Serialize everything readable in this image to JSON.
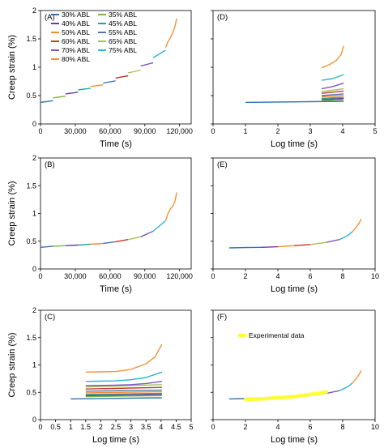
{
  "colors": {
    "s30": "#2e75b6",
    "s35": "#7cb342",
    "s40": "#6a3d9a",
    "s45": "#26a69a",
    "s50": "#f28e2b",
    "s55": "#4e79a7",
    "s60": "#c0392b",
    "s65": "#a5c04f",
    "s70": "#7e57c2",
    "s75": "#2bb3d6",
    "s80": "#f39237",
    "exp": "#ffff33",
    "axis": "#000000",
    "frame": "#000000"
  },
  "legend": {
    "series": [
      "30% ABL",
      "35% ABL",
      "40% ABL",
      "45% ABL",
      "50% ABL",
      "55% ABL",
      "60% ABL",
      "65% ABL",
      "70% ABL",
      "75% ABL",
      "80% ABL"
    ],
    "experimental": "Experimental data"
  },
  "chart_data": [
    {
      "panel": "(A)",
      "type": "line",
      "xlabel": "Time (s)",
      "ylabel": "Creep strain (%)",
      "xlim": [
        0,
        130000
      ],
      "ylim": [
        0,
        2.0
      ],
      "xticks": [
        0,
        30000,
        60000,
        90000,
        120000
      ],
      "xticklabels": [
        "0",
        "30,000",
        "60,000",
        "90,000",
        "120,000"
      ],
      "yticks": [
        0,
        0.5,
        1.0,
        1.5,
        2.0
      ],
      "yticklabels": [
        "0",
        "0.5",
        "1",
        "1.5",
        "2"
      ],
      "legend_position": "top-left",
      "series": [
        {
          "name": "30% ABL",
          "color_key": "s30",
          "x": [
            0,
            10800
          ],
          "y": [
            0.38,
            0.41
          ]
        },
        {
          "name": "35% ABL",
          "color_key": "s35",
          "x": [
            10800,
            21600
          ],
          "y": [
            0.46,
            0.49
          ]
        },
        {
          "name": "40% ABL",
          "color_key": "s40",
          "x": [
            21600,
            32400
          ],
          "y": [
            0.53,
            0.56
          ]
        },
        {
          "name": "45% ABL",
          "color_key": "s45",
          "x": [
            32400,
            43200
          ],
          "y": [
            0.6,
            0.63
          ]
        },
        {
          "name": "50% ABL",
          "color_key": "s50",
          "x": [
            43200,
            54000
          ],
          "y": [
            0.66,
            0.69
          ]
        },
        {
          "name": "55% ABL",
          "color_key": "s55",
          "x": [
            54000,
            64800
          ],
          "y": [
            0.72,
            0.76
          ]
        },
        {
          "name": "60% ABL",
          "color_key": "s60",
          "x": [
            64800,
            75600
          ],
          "y": [
            0.81,
            0.85
          ]
        },
        {
          "name": "65% ABL",
          "color_key": "s65",
          "x": [
            75600,
            86400
          ],
          "y": [
            0.9,
            0.95
          ]
        },
        {
          "name": "70% ABL",
          "color_key": "s70",
          "x": [
            86400,
            97200
          ],
          "y": [
            1.02,
            1.08
          ]
        },
        {
          "name": "75% ABL",
          "color_key": "s75",
          "x": [
            97200,
            108000
          ],
          "y": [
            1.17,
            1.3
          ]
        },
        {
          "name": "80% ABL",
          "color_key": "s80",
          "x": [
            108000,
            110000,
            112000,
            114000,
            116000,
            117500
          ],
          "y": [
            1.35,
            1.45,
            1.52,
            1.6,
            1.72,
            1.86
          ]
        }
      ]
    },
    {
      "panel": "(B)",
      "type": "line",
      "xlabel": "Time (s)",
      "ylabel": "Creep strain (%)",
      "xlim": [
        0,
        130000
      ],
      "ylim": [
        0,
        2.0
      ],
      "xticks": [
        0,
        30000,
        60000,
        90000,
        120000
      ],
      "xticklabels": [
        "0",
        "30,000",
        "60,000",
        "90,000",
        "120,000"
      ],
      "yticks": [
        0,
        0.5,
        1.0,
        1.5,
        2.0
      ],
      "yticklabels": [
        "0",
        "0.5",
        "1",
        "1.5",
        "2"
      ],
      "series": [
        {
          "name": "30% ABL",
          "color_key": "s30",
          "x": [
            0,
            10800
          ],
          "y": [
            0.39,
            0.41
          ]
        },
        {
          "name": "35% ABL",
          "color_key": "s35",
          "x": [
            10800,
            21600
          ],
          "y": [
            0.41,
            0.42
          ]
        },
        {
          "name": "40% ABL",
          "color_key": "s40",
          "x": [
            21600,
            32400
          ],
          "y": [
            0.42,
            0.43
          ]
        },
        {
          "name": "45% ABL",
          "color_key": "s45",
          "x": [
            32400,
            43200
          ],
          "y": [
            0.43,
            0.445
          ]
        },
        {
          "name": "50% ABL",
          "color_key": "s50",
          "x": [
            43200,
            54000
          ],
          "y": [
            0.445,
            0.46
          ]
        },
        {
          "name": "55% ABL",
          "color_key": "s55",
          "x": [
            54000,
            64800
          ],
          "y": [
            0.46,
            0.49
          ]
        },
        {
          "name": "60% ABL",
          "color_key": "s60",
          "x": [
            64800,
            75600
          ],
          "y": [
            0.49,
            0.53
          ]
        },
        {
          "name": "65% ABL",
          "color_key": "s65",
          "x": [
            75600,
            86400
          ],
          "y": [
            0.53,
            0.58
          ]
        },
        {
          "name": "70% ABL",
          "color_key": "s70",
          "x": [
            86400,
            97200
          ],
          "y": [
            0.58,
            0.68
          ]
        },
        {
          "name": "75% ABL",
          "color_key": "s75",
          "x": [
            97200,
            108000
          ],
          "y": [
            0.68,
            0.87
          ]
        },
        {
          "name": "80% ABL",
          "color_key": "s80",
          "x": [
            108000,
            110000,
            112000,
            114000,
            116000,
            117500
          ],
          "y": [
            0.87,
            1.0,
            1.08,
            1.13,
            1.22,
            1.38
          ]
        }
      ]
    },
    {
      "panel": "(C)",
      "type": "line",
      "xlabel": "Log time (s)",
      "ylabel": "Creep strain (%)",
      "xlim": [
        0,
        5
      ],
      "ylim": [
        0,
        2.0
      ],
      "xticks": [
        0,
        0.5,
        1,
        1.5,
        2,
        2.5,
        3,
        3.5,
        4,
        4.5,
        5
      ],
      "xticklabels": [
        "0",
        "0.5",
        "1",
        "1.5",
        "2",
        "2.5",
        "3",
        "3.5",
        "4",
        "4.5",
        "5"
      ],
      "yticks": [
        0,
        0.5,
        1.0,
        1.5,
        2.0
      ],
      "yticklabels": [
        "0",
        "0.5",
        "1",
        "1.5",
        "2"
      ],
      "series": [
        {
          "name": "30% ABL",
          "color_key": "s30",
          "x": [
            1.0,
            4.03
          ],
          "y": [
            0.38,
            0.4
          ]
        },
        {
          "name": "35% ABL",
          "color_key": "s35",
          "x": [
            1.5,
            4.03
          ],
          "y": [
            0.42,
            0.44
          ]
        },
        {
          "name": "40% ABL",
          "color_key": "s40",
          "x": [
            1.5,
            4.03
          ],
          "y": [
            0.44,
            0.46
          ]
        },
        {
          "name": "45% ABL",
          "color_key": "s45",
          "x": [
            1.5,
            4.03
          ],
          "y": [
            0.46,
            0.48
          ]
        },
        {
          "name": "50% ABL",
          "color_key": "s50",
          "x": [
            1.5,
            4.03
          ],
          "y": [
            0.49,
            0.51
          ]
        },
        {
          "name": "55% ABL",
          "color_key": "s55",
          "x": [
            1.5,
            4.03
          ],
          "y": [
            0.52,
            0.54
          ]
        },
        {
          "name": "60% ABL",
          "color_key": "s60",
          "x": [
            1.5,
            4.03
          ],
          "y": [
            0.56,
            0.59
          ]
        },
        {
          "name": "65% ABL",
          "color_key": "s65",
          "x": [
            1.5,
            4.03
          ],
          "y": [
            0.6,
            0.64
          ]
        },
        {
          "name": "70% ABL",
          "color_key": "s70",
          "x": [
            1.5,
            2.5,
            3.0,
            3.5,
            4.03
          ],
          "y": [
            0.62,
            0.63,
            0.64,
            0.66,
            0.7
          ]
        },
        {
          "name": "75% ABL",
          "color_key": "s75",
          "x": [
            1.5,
            2.5,
            3.0,
            3.5,
            4.03
          ],
          "y": [
            0.7,
            0.71,
            0.73,
            0.77,
            0.87
          ]
        },
        {
          "name": "80% ABL",
          "color_key": "s80",
          "x": [
            1.5,
            2.5,
            3.0,
            3.5,
            3.8,
            4.03
          ],
          "y": [
            0.87,
            0.88,
            0.92,
            1.02,
            1.15,
            1.38
          ]
        }
      ]
    },
    {
      "panel": "(D)",
      "type": "line",
      "xlabel": "Log time (s)",
      "ylabel": "",
      "xlim": [
        0,
        5
      ],
      "ylim": [
        0,
        2.0
      ],
      "xticks": [
        0,
        1,
        2,
        3,
        4,
        5
      ],
      "xticklabels": [
        "0",
        "1",
        "2",
        "3",
        "4",
        "5"
      ],
      "yticks": [],
      "yticklabels": [],
      "series": [
        {
          "name": "30% ABL",
          "color_key": "s30",
          "x": [
            1.0,
            4.03
          ],
          "y": [
            0.38,
            0.4
          ]
        },
        {
          "name": "35% ABL",
          "color_key": "s35",
          "x": [
            3.35,
            4.03
          ],
          "y": [
            0.41,
            0.43
          ]
        },
        {
          "name": "40% ABL",
          "color_key": "s40",
          "x": [
            3.35,
            4.03
          ],
          "y": [
            0.43,
            0.45
          ]
        },
        {
          "name": "45% ABL",
          "color_key": "s45",
          "x": [
            3.35,
            4.03
          ],
          "y": [
            0.45,
            0.47
          ]
        },
        {
          "name": "50% ABL",
          "color_key": "s50",
          "x": [
            3.35,
            4.03
          ],
          "y": [
            0.48,
            0.5
          ]
        },
        {
          "name": "55% ABL",
          "color_key": "s55",
          "x": [
            3.35,
            4.03
          ],
          "y": [
            0.5,
            0.53
          ]
        },
        {
          "name": "60% ABL",
          "color_key": "s60",
          "x": [
            3.35,
            4.03
          ],
          "y": [
            0.54,
            0.58
          ]
        },
        {
          "name": "65% ABL",
          "color_key": "s65",
          "x": [
            3.35,
            4.03
          ],
          "y": [
            0.57,
            0.62
          ]
        },
        {
          "name": "70% ABL",
          "color_key": "s70",
          "x": [
            3.35,
            3.7,
            4.03
          ],
          "y": [
            0.62,
            0.66,
            0.72
          ]
        },
        {
          "name": "75% ABL",
          "color_key": "s75",
          "x": [
            3.35,
            3.7,
            4.03
          ],
          "y": [
            0.77,
            0.8,
            0.87
          ]
        },
        {
          "name": "80% ABL",
          "color_key": "s80",
          "x": [
            3.35,
            3.6,
            3.8,
            3.95,
            4.03
          ],
          "y": [
            0.99,
            1.05,
            1.12,
            1.22,
            1.38
          ]
        }
      ]
    },
    {
      "panel": "(E)",
      "type": "line",
      "xlabel": "Log time (s)",
      "ylabel": "",
      "xlim": [
        0,
        10
      ],
      "ylim": [
        0,
        2.0
      ],
      "xticks": [
        0,
        2,
        4,
        6,
        8,
        10
      ],
      "xticklabels": [
        "0",
        "2",
        "4",
        "6",
        "8",
        "10"
      ],
      "yticks": [],
      "yticklabels": [],
      "series": [
        {
          "name": "30% ABL",
          "color_key": "s30",
          "x": [
            1.0,
            2.0,
            3.0
          ],
          "y": [
            0.38,
            0.385,
            0.39
          ]
        },
        {
          "name": "40% ABL",
          "color_key": "s40",
          "x": [
            3.0,
            4.0
          ],
          "y": [
            0.39,
            0.4
          ]
        },
        {
          "name": "50% ABL",
          "color_key": "s50",
          "x": [
            4.0,
            5.0
          ],
          "y": [
            0.4,
            0.42
          ]
        },
        {
          "name": "60% ABL",
          "color_key": "s60",
          "x": [
            5.0,
            6.0
          ],
          "y": [
            0.42,
            0.44
          ]
        },
        {
          "name": "65% ABL",
          "color_key": "s65",
          "x": [
            6.0,
            7.0
          ],
          "y": [
            0.44,
            0.48
          ]
        },
        {
          "name": "70% ABL",
          "color_key": "s70",
          "x": [
            7.0,
            7.8
          ],
          "y": [
            0.48,
            0.53
          ]
        },
        {
          "name": "75% ABL",
          "color_key": "s75",
          "x": [
            7.8,
            8.3,
            8.6
          ],
          "y": [
            0.53,
            0.6,
            0.67
          ]
        },
        {
          "name": "80% ABL",
          "color_key": "s80",
          "x": [
            8.6,
            8.8,
            9.0,
            9.15
          ],
          "y": [
            0.67,
            0.74,
            0.82,
            0.9
          ]
        }
      ]
    },
    {
      "panel": "(F)",
      "type": "line",
      "xlabel": "Log time (s)",
      "ylabel": "",
      "xlim": [
        0,
        10
      ],
      "ylim": [
        0,
        2.0
      ],
      "xticks": [
        0,
        2,
        4,
        6,
        8,
        10
      ],
      "xticklabels": [
        "0",
        "2",
        "4",
        "6",
        "8",
        "10"
      ],
      "yticks": [],
      "yticklabels": [],
      "legend_position": "top-left",
      "series": [
        {
          "name": "30% ABL",
          "color_key": "s30",
          "x": [
            1.0,
            2.0,
            3.0
          ],
          "y": [
            0.38,
            0.385,
            0.39
          ]
        },
        {
          "name": "40% ABL",
          "color_key": "s40",
          "x": [
            3.0,
            4.0
          ],
          "y": [
            0.39,
            0.4
          ]
        },
        {
          "name": "50% ABL",
          "color_key": "s50",
          "x": [
            4.0,
            5.0
          ],
          "y": [
            0.4,
            0.42
          ]
        },
        {
          "name": "60% ABL",
          "color_key": "s60",
          "x": [
            5.0,
            6.0
          ],
          "y": [
            0.42,
            0.44
          ]
        },
        {
          "name": "65% ABL",
          "color_key": "s65",
          "x": [
            6.0,
            7.0
          ],
          "y": [
            0.44,
            0.48
          ]
        },
        {
          "name": "70% ABL",
          "color_key": "s70",
          "x": [
            7.0,
            7.8
          ],
          "y": [
            0.48,
            0.53
          ]
        },
        {
          "name": "75% ABL",
          "color_key": "s75",
          "x": [
            7.8,
            8.3,
            8.6
          ],
          "y": [
            0.53,
            0.6,
            0.67
          ]
        },
        {
          "name": "80% ABL",
          "color_key": "s80",
          "x": [
            8.6,
            8.8,
            9.0,
            9.15
          ],
          "y": [
            0.67,
            0.74,
            0.82,
            0.9
          ]
        },
        {
          "name": "Experimental data",
          "color_key": "exp",
          "dense": true,
          "x": [
            2.0,
            2.5,
            3.0,
            3.5,
            4.0,
            4.5,
            5.0,
            5.5,
            6.0,
            6.5,
            7.0
          ],
          "y": [
            0.37,
            0.375,
            0.38,
            0.39,
            0.4,
            0.41,
            0.42,
            0.44,
            0.46,
            0.48,
            0.51
          ]
        }
      ]
    }
  ]
}
